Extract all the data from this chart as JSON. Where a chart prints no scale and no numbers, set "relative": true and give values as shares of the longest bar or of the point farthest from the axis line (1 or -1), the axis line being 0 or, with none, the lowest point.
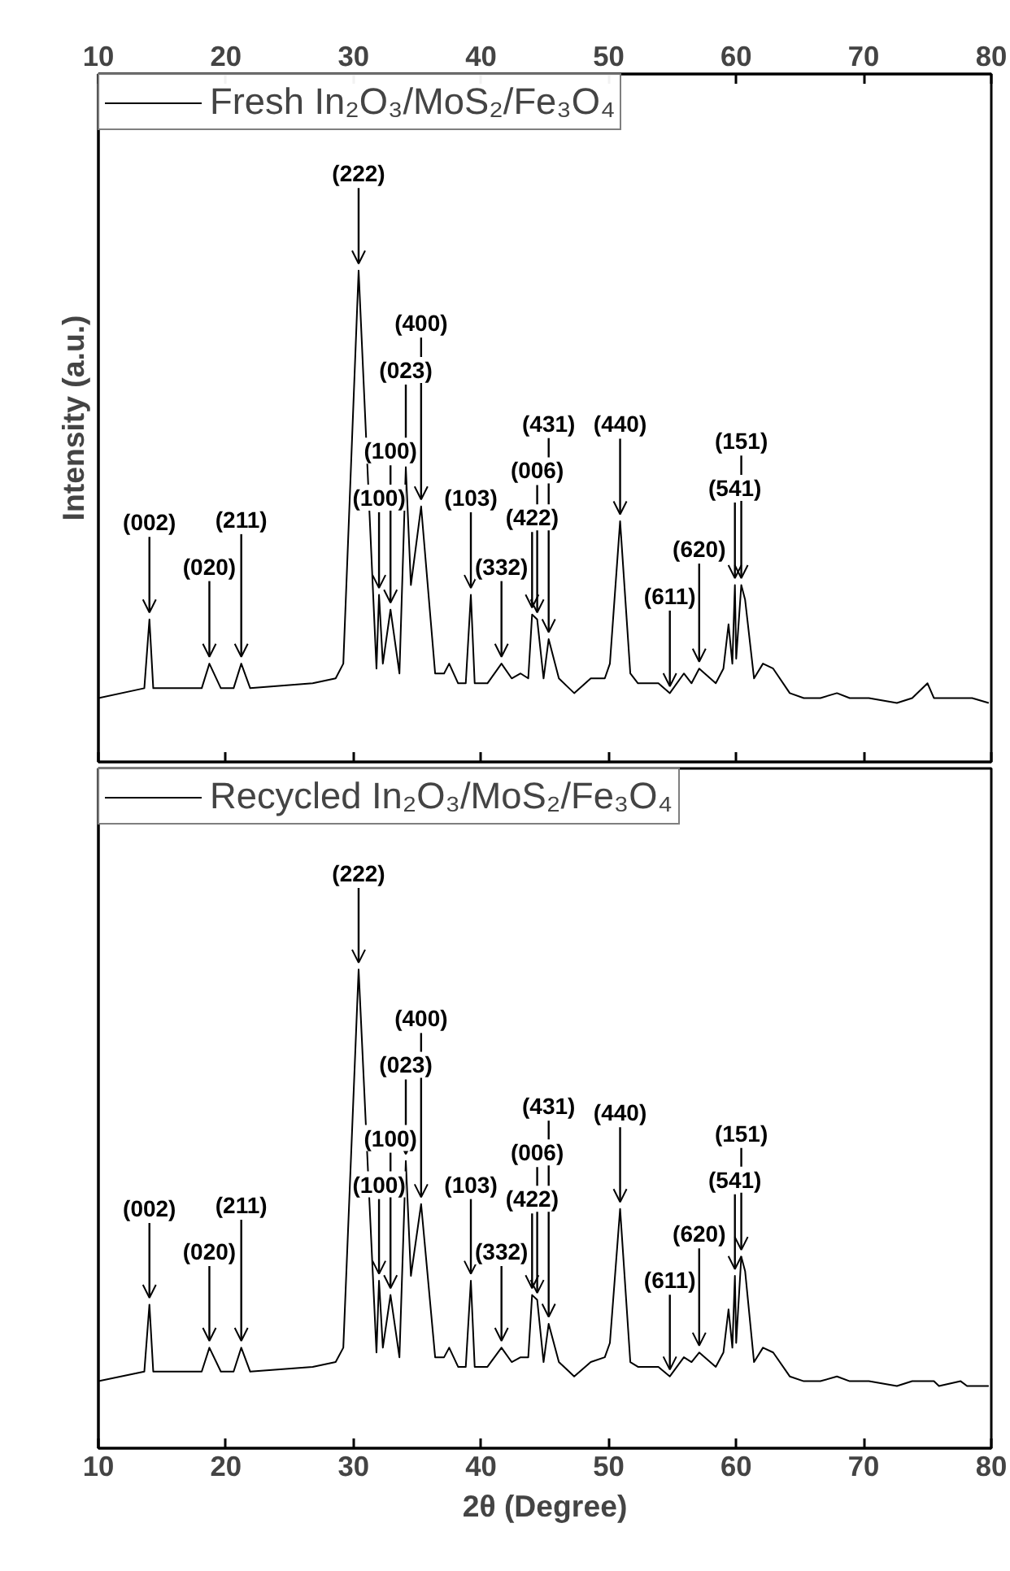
{
  "chart_data": [
    {
      "type": "line",
      "relative": true,
      "ylabel": "Intensity (a.u.)",
      "xlim": [
        10,
        80
      ],
      "xticks": [
        10,
        20,
        30,
        40,
        50,
        60,
        70,
        80
      ],
      "x2lim": [
        10,
        80
      ],
      "x2ticks": [
        10,
        20,
        30,
        40,
        50,
        60,
        70,
        80
      ],
      "tick_labels": false,
      "legend": "top left",
      "grid": false,
      "series": [
        {
          "name": "Fresh In₂O₃/MoS₂/Fe₃O₄",
          "color": "#000000",
          "x": [
            10.0,
            13.6,
            14.0,
            14.3,
            18.1,
            18.7,
            19.6,
            20.6,
            21.2,
            21.9,
            26.8,
            28.6,
            29.2,
            30.4,
            31.8,
            32.0,
            32.3,
            32.9,
            33.6,
            34.1,
            34.5,
            35.3,
            36.4,
            37.1,
            37.5,
            38.2,
            38.8,
            39.2,
            39.5,
            40.5,
            41.6,
            42.4,
            43.1,
            43.7,
            44.0,
            44.4,
            44.9,
            45.3,
            46.1,
            46.9,
            47.3,
            48.6,
            49.7,
            50.1,
            50.9,
            51.7,
            52.3,
            52.9,
            53.9,
            54.8,
            55.9,
            56.5,
            57.1,
            58.4,
            59.0,
            59.4,
            59.7,
            59.9,
            60.0,
            60.4,
            60.7,
            61.4,
            62.1,
            62.9,
            64.2,
            65.3,
            66.6,
            67.9,
            68.9,
            70.4,
            72.6,
            73.8,
            75.0,
            75.5,
            76.2,
            77.2,
            78.5,
            79.8
          ],
          "values": [
            0.13,
            0.15,
            0.29,
            0.15,
            0.15,
            0.2,
            0.15,
            0.15,
            0.2,
            0.15,
            0.16,
            0.17,
            0.2,
            1.0,
            0.19,
            0.34,
            0.2,
            0.31,
            0.18,
            0.6,
            0.36,
            0.52,
            0.18,
            0.18,
            0.2,
            0.16,
            0.16,
            0.34,
            0.16,
            0.16,
            0.2,
            0.17,
            0.18,
            0.17,
            0.3,
            0.29,
            0.17,
            0.25,
            0.17,
            0.15,
            0.14,
            0.17,
            0.17,
            0.2,
            0.49,
            0.18,
            0.16,
            0.16,
            0.16,
            0.14,
            0.18,
            0.16,
            0.19,
            0.16,
            0.19,
            0.28,
            0.2,
            0.36,
            0.21,
            0.36,
            0.33,
            0.17,
            0.2,
            0.19,
            0.14,
            0.13,
            0.13,
            0.14,
            0.13,
            0.13,
            0.12,
            0.13,
            0.16,
            0.13,
            0.13,
            0.13,
            0.13,
            0.12
          ]
        }
      ],
      "annotations": [
        {
          "text": "(002)",
          "x": 14.0,
          "y": 0.29
        },
        {
          "text": "(020)",
          "x": 18.7,
          "y": 0.2
        },
        {
          "text": "(211)",
          "x": 21.2,
          "y": 0.2
        },
        {
          "text": "(222)",
          "x": 30.4,
          "y": 1.0
        },
        {
          "text": "(100)",
          "x": 32.0,
          "y": 0.34
        },
        {
          "text": "(100)",
          "x": 32.9,
          "y": 0.31
        },
        {
          "text": "(023)",
          "x": 34.1,
          "y": 0.6
        },
        {
          "text": "(400)",
          "x": 35.3,
          "y": 0.52
        },
        {
          "text": "(103)",
          "x": 39.2,
          "y": 0.34
        },
        {
          "text": "(332)",
          "x": 41.6,
          "y": 0.2
        },
        {
          "text": "(422)",
          "x": 44.0,
          "y": 0.3
        },
        {
          "text": "(006)",
          "x": 44.4,
          "y": 0.29
        },
        {
          "text": "(431)",
          "x": 45.3,
          "y": 0.25
        },
        {
          "text": "(440)",
          "x": 50.9,
          "y": 0.49
        },
        {
          "text": "(611)",
          "x": 54.8,
          "y": 0.14
        },
        {
          "text": "(620)",
          "x": 57.1,
          "y": 0.19
        },
        {
          "text": "(541)",
          "x": 59.9,
          "y": 0.36
        },
        {
          "text": "(151)",
          "x": 60.4,
          "y": 0.36
        }
      ]
    },
    {
      "type": "line",
      "relative": true,
      "xlabel": "2θ (Degree)",
      "xlim": [
        10,
        80
      ],
      "xticks": [
        10,
        20,
        30,
        40,
        50,
        60,
        70,
        80
      ],
      "tick_labels": "x",
      "legend": "top left",
      "grid": false,
      "series": [
        {
          "name": "Recycled In₂O₃/MoS₂/Fe₃O₄",
          "color": "#000000",
          "x": [
            10.0,
            13.6,
            14.0,
            14.3,
            18.1,
            18.7,
            19.6,
            20.6,
            21.2,
            21.9,
            26.8,
            28.6,
            29.2,
            30.4,
            31.8,
            32.0,
            32.3,
            32.9,
            33.6,
            34.1,
            34.5,
            35.3,
            36.4,
            37.1,
            37.5,
            38.2,
            38.8,
            39.2,
            39.5,
            40.5,
            41.6,
            42.4,
            43.1,
            43.7,
            44.0,
            44.4,
            44.9,
            45.3,
            46.1,
            46.9,
            47.3,
            48.6,
            49.7,
            50.1,
            50.9,
            51.7,
            52.3,
            52.9,
            53.9,
            54.8,
            55.9,
            56.5,
            57.1,
            58.4,
            59.0,
            59.4,
            59.7,
            59.9,
            60.0,
            60.4,
            60.7,
            61.4,
            62.1,
            62.9,
            64.2,
            65.3,
            66.6,
            67.9,
            68.9,
            70.4,
            72.6,
            73.8,
            75.5,
            75.9,
            77.6,
            78.1,
            79.8
          ],
          "values": [
            0.14,
            0.16,
            0.3,
            0.16,
            0.16,
            0.21,
            0.16,
            0.16,
            0.21,
            0.16,
            0.17,
            0.18,
            0.21,
            1.0,
            0.2,
            0.35,
            0.21,
            0.32,
            0.19,
            0.6,
            0.36,
            0.51,
            0.19,
            0.19,
            0.21,
            0.17,
            0.17,
            0.35,
            0.17,
            0.17,
            0.21,
            0.18,
            0.19,
            0.19,
            0.32,
            0.31,
            0.18,
            0.26,
            0.18,
            0.16,
            0.15,
            0.18,
            0.19,
            0.22,
            0.5,
            0.18,
            0.17,
            0.17,
            0.17,
            0.15,
            0.19,
            0.18,
            0.2,
            0.17,
            0.2,
            0.29,
            0.21,
            0.36,
            0.22,
            0.4,
            0.37,
            0.18,
            0.21,
            0.2,
            0.15,
            0.14,
            0.14,
            0.15,
            0.14,
            0.14,
            0.13,
            0.14,
            0.14,
            0.13,
            0.14,
            0.13,
            0.13
          ]
        }
      ],
      "annotations": [
        {
          "text": "(002)",
          "x": 14.0,
          "y": 0.3
        },
        {
          "text": "(020)",
          "x": 18.7,
          "y": 0.21
        },
        {
          "text": "(211)",
          "x": 21.2,
          "y": 0.21
        },
        {
          "text": "(222)",
          "x": 30.4,
          "y": 1.0
        },
        {
          "text": "(100)",
          "x": 32.0,
          "y": 0.35
        },
        {
          "text": "(100)",
          "x": 32.9,
          "y": 0.32
        },
        {
          "text": "(023)",
          "x": 34.1,
          "y": 0.6
        },
        {
          "text": "(400)",
          "x": 35.3,
          "y": 0.51
        },
        {
          "text": "(103)",
          "x": 39.2,
          "y": 0.35
        },
        {
          "text": "(332)",
          "x": 41.6,
          "y": 0.21
        },
        {
          "text": "(422)",
          "x": 44.0,
          "y": 0.32
        },
        {
          "text": "(006)",
          "x": 44.4,
          "y": 0.31
        },
        {
          "text": "(431)",
          "x": 45.3,
          "y": 0.26
        },
        {
          "text": "(440)",
          "x": 50.9,
          "y": 0.5
        },
        {
          "text": "(611)",
          "x": 54.8,
          "y": 0.15
        },
        {
          "text": "(620)",
          "x": 57.1,
          "y": 0.2
        },
        {
          "text": "(541)",
          "x": 59.9,
          "y": 0.36
        },
        {
          "text": "(151)",
          "x": 60.4,
          "y": 0.4
        }
      ]
    }
  ]
}
